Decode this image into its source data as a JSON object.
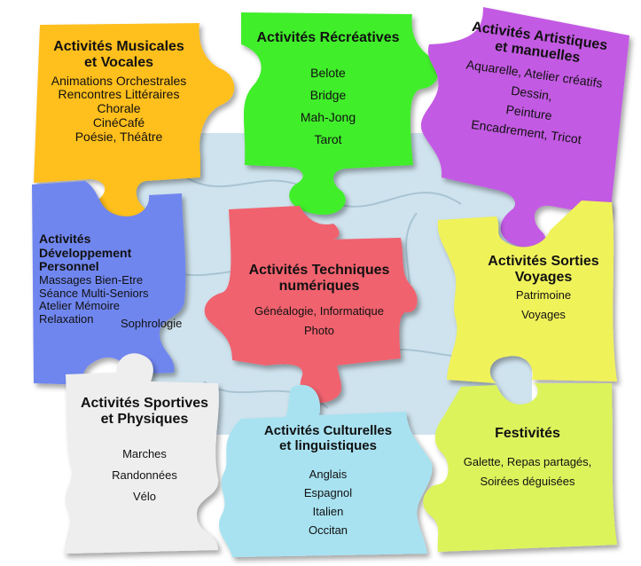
{
  "colors": {
    "background": "#ffffff",
    "board": "#cfe3ee",
    "musicales": "#ffbf1f",
    "recreatives": "#3fee2a",
    "artistiques": "#c35ae3",
    "developpement": "#6f86ef",
    "techniques": "#f0626e",
    "sorties": "#f0f25a",
    "sportives": "#eeeeee",
    "culturelles": "#a8e2f1",
    "festivites": "#dcf35c"
  },
  "pieces": {
    "musicales": {
      "title_1": "Activités Musicales",
      "title_2": "et Vocales",
      "items": [
        "Animations Orchestrales",
        "Rencontres Littéraires",
        "Chorale",
        "CinéCafé",
        "Poésie, Théâtre"
      ]
    },
    "recreatives": {
      "title_1": "Activités Récréatives",
      "items": [
        "Belote",
        "Bridge",
        "Mah-Jong",
        "Tarot"
      ]
    },
    "artistiques": {
      "title_1": "Activités Artistiques",
      "title_2": "et manuelles",
      "items": [
        "Aquarelle, Atelier créatifs",
        "Dessin,",
        "Peinture",
        "Encadrement, Tricot"
      ]
    },
    "developpement": {
      "title_1": "Activités",
      "title_2": "Développement",
      "title_3": "Personnel",
      "items": [
        "Massages Bien-Etre",
        "Séance Multi-Seniors",
        "Atelier Mémoire",
        "Relaxation"
      ],
      "extra": "Sophrologie"
    },
    "techniques": {
      "title_1": "Activités Techniques",
      "title_2": "numériques",
      "items": [
        "Généalogie, Informatique",
        "Photo"
      ]
    },
    "sorties": {
      "title_1": "Activités Sorties",
      "title_2": "Voyages",
      "items": [
        "Patrimoine",
        "Voyages"
      ]
    },
    "sportives": {
      "title_1": "Activités Sportives",
      "title_2": "et Physiques",
      "items": [
        "Marches",
        "Randonnées",
        "Vélo"
      ]
    },
    "culturelles": {
      "title_1": "Activités Culturelles",
      "title_2": "et linguistiques",
      "items": [
        "Anglais",
        "Espagnol",
        "Italien",
        "Occitan"
      ]
    },
    "festivites": {
      "title_1": "Festivités",
      "items": [
        "Galette, Repas partagés,",
        "Soirées déguisées"
      ]
    }
  }
}
